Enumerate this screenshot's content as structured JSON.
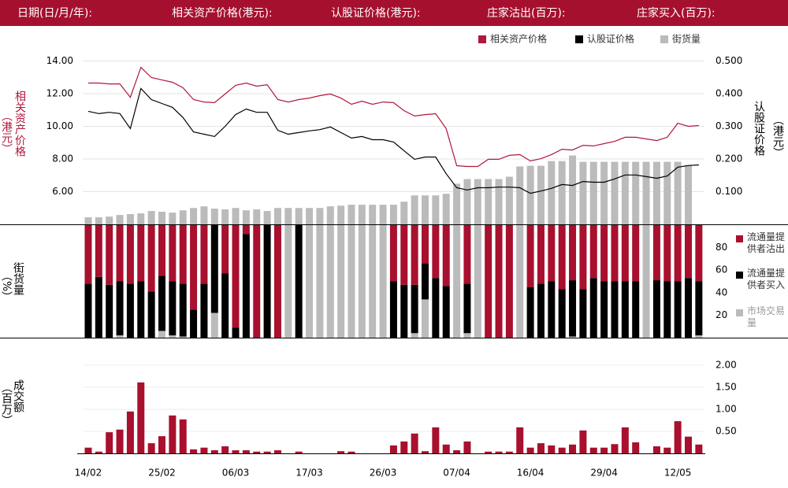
{
  "header": {
    "labels": [
      "日期(日/月/年):",
      "相关资产价格(港元):",
      "认股证价格(港元):",
      "庄家沽出(百万):",
      "庄家买入(百万):"
    ]
  },
  "chart_data": [
    {
      "type": "line",
      "y_label": "相关资产价格",
      "y_unit": "（港元）",
      "y2_label": "认股证价格",
      "y2_unit": "（港元）",
      "ylim": [
        4,
        15
      ],
      "yticks": [
        {
          "value": 14,
          "label": "14.00"
        },
        {
          "value": 12,
          "label": "12.00"
        },
        {
          "value": 10,
          "label": "10.00"
        },
        {
          "value": 8,
          "label": "8.00"
        },
        {
          "value": 6,
          "label": "6.00"
        }
      ],
      "y2lim": [
        0,
        0.55
      ],
      "y2ticks": [
        {
          "value": 0.5,
          "label": "0.500"
        },
        {
          "value": 0.4,
          "label": "0.400"
        },
        {
          "value": 0.3,
          "label": "0.300"
        },
        {
          "value": 0.2,
          "label": "0.200"
        },
        {
          "value": 0.1,
          "label": "0.100"
        }
      ],
      "y3lim": [
        0,
        100
      ],
      "grid": true,
      "series": [
        {
          "name": "相关资产价格",
          "color": "#b0183c",
          "values": [
            12.65,
            12.65,
            12.6,
            12.6,
            11.78,
            13.61,
            12.99,
            12.84,
            12.7,
            12.36,
            11.64,
            11.49,
            11.45,
            11.98,
            12.51,
            12.65,
            12.46,
            12.55,
            11.64,
            11.49,
            11.64,
            11.73,
            11.88,
            11.98,
            11.73,
            11.35,
            11.54,
            11.35,
            11.49,
            11.45,
            10.96,
            10.63,
            10.72,
            10.77,
            9.86,
            7.59,
            7.54,
            7.54,
            7.98,
            7.98,
            8.22,
            8.27,
            7.88,
            8.02,
            8.27,
            8.6,
            8.55,
            8.84,
            8.8,
            8.94,
            9.08,
            9.33,
            9.33,
            9.23,
            9.13,
            9.33,
            10.19,
            10.0,
            10.05
          ]
        },
        {
          "name": "认股证价格",
          "color": "#000000",
          "axis": "y2",
          "values": [
            0.346,
            0.339,
            0.343,
            0.339,
            0.293,
            0.416,
            0.382,
            0.37,
            0.358,
            0.327,
            0.283,
            0.276,
            0.269,
            0.3,
            0.336,
            0.353,
            0.343,
            0.343,
            0.288,
            0.276,
            0.281,
            0.286,
            0.29,
            0.298,
            0.281,
            0.264,
            0.269,
            0.259,
            0.259,
            0.252,
            0.225,
            0.199,
            0.206,
            0.206,
            0.155,
            0.112,
            0.105,
            0.112,
            0.112,
            0.114,
            0.114,
            0.112,
            0.095,
            0.102,
            0.11,
            0.122,
            0.119,
            0.131,
            0.129,
            0.129,
            0.139,
            0.151,
            0.151,
            0.146,
            0.141,
            0.148,
            0.175,
            0.18,
            0.182
          ]
        },
        {
          "name": "街货量",
          "color": "#bbbbbb",
          "type": "bar",
          "axis": "y3",
          "values": [
            3.9,
            3.9,
            4.3,
            5.2,
            5.7,
            6.1,
            7.4,
            7.0,
            6.5,
            7.8,
            9.1,
            10.0,
            8.7,
            8.3,
            9.1,
            7.8,
            8.3,
            7.4,
            9.1,
            9.1,
            9.1,
            9.1,
            9.1,
            10.0,
            10.4,
            10.9,
            10.9,
            10.9,
            10.9,
            10.9,
            12.6,
            16.1,
            16.1,
            16.1,
            17.0,
            22.6,
            25.2,
            25.2,
            25.2,
            25.2,
            26.5,
            32.2,
            32.6,
            32.6,
            35.2,
            35.2,
            38.3,
            34.8,
            34.8,
            34.8,
            34.8,
            34.8,
            34.8,
            34.8,
            34.8,
            34.8,
            34.8,
            33.0,
            null
          ]
        }
      ]
    },
    {
      "type": "stacked_bar",
      "y_label": "街货量",
      "y_unit": "（%）",
      "ylim": [
        0,
        100
      ],
      "yticks": [
        80,
        60,
        40,
        20
      ],
      "series": [
        {
          "name": "流通量提供者沽出",
          "color": "#a8102e",
          "values": [
            52,
            46,
            53,
            50,
            52,
            50,
            59,
            45,
            50,
            52,
            75,
            52,
            0,
            43,
            91,
            8,
            100,
            0,
            100,
            0,
            0,
            0,
            0,
            0,
            0,
            0,
            0,
            0,
            0,
            50,
            53,
            53,
            34,
            47,
            54,
            0,
            52,
            0,
            100,
            100,
            100,
            0,
            55,
            52,
            50,
            57,
            49,
            57,
            47,
            50,
            50,
            50,
            50,
            0,
            49,
            50,
            50,
            47,
            50
          ]
        },
        {
          "name": "流通量提供者买入",
          "color": "#000000",
          "values": [
            48,
            54,
            47,
            48,
            48,
            50,
            41,
            49,
            48,
            47,
            25,
            48,
            78,
            57,
            9,
            92,
            0,
            100,
            0,
            0,
            100,
            0,
            0,
            0,
            0,
            0,
            0,
            0,
            0,
            50,
            47,
            43,
            32,
            53,
            46,
            0,
            44,
            0,
            0,
            0,
            0,
            0,
            45,
            48,
            50,
            43,
            50,
            43,
            53,
            50,
            50,
            50,
            50,
            0,
            51,
            50,
            50,
            53,
            48
          ]
        },
        {
          "name": "市场交易量",
          "color": "#bbbbbb",
          "values": [
            0,
            0,
            0,
            2,
            0,
            0,
            0,
            6,
            2,
            1,
            0,
            0,
            22,
            0,
            0,
            0,
            0,
            0,
            0,
            100,
            0,
            100,
            100,
            100,
            100,
            100,
            100,
            100,
            100,
            0,
            0,
            4,
            34,
            0,
            0,
            100,
            4,
            100,
            0,
            0,
            0,
            100,
            0,
            0,
            0,
            0,
            1,
            0,
            0,
            0,
            0,
            0,
            0,
            100,
            0,
            0,
            0,
            0,
            2
          ]
        }
      ]
    },
    {
      "type": "bar",
      "y_label": "成交额",
      "y_unit": "（百万）",
      "categories": [
        "14/02",
        null,
        null,
        null,
        null,
        null,
        null,
        "25/02",
        null,
        null,
        null,
        null,
        null,
        null,
        "06/03",
        null,
        null,
        null,
        null,
        null,
        null,
        "17/03",
        null,
        null,
        null,
        null,
        null,
        null,
        "26/03",
        null,
        null,
        null,
        null,
        null,
        null,
        "07/04",
        null,
        null,
        null,
        null,
        null,
        null,
        "16/04",
        null,
        null,
        null,
        null,
        null,
        null,
        "29/04",
        null,
        null,
        null,
        null,
        null,
        null,
        "12/05",
        null,
        null
      ],
      "ylim": [
        0,
        2.2
      ],
      "yticks": [
        {
          "value": 2,
          "label": "2.00"
        },
        {
          "value": 1.5,
          "label": "1.50"
        },
        {
          "value": 1,
          "label": "1.00"
        },
        {
          "value": 0.5,
          "label": "0.50"
        }
      ],
      "grid": true,
      "color": "#a8102e",
      "values": [
        0.13,
        0.04,
        0.48,
        0.54,
        0.95,
        1.61,
        0.23,
        0.39,
        0.86,
        0.77,
        0.09,
        0.13,
        0.07,
        0.16,
        0.07,
        0.07,
        0.04,
        0.04,
        0.07,
        0,
        0.04,
        0,
        0,
        0,
        0.05,
        0.04,
        0,
        0,
        0,
        0.18,
        0.27,
        0.45,
        0.05,
        0.59,
        0.2,
        0.07,
        0.27,
        0,
        0.04,
        0.04,
        0.04,
        0.59,
        0.13,
        0.23,
        0.18,
        0.13,
        0.2,
        0.52,
        0.13,
        0.13,
        0.21,
        0.59,
        0.25,
        0,
        0.16,
        0.13,
        0.73,
        0.38,
        0.2
      ]
    }
  ]
}
